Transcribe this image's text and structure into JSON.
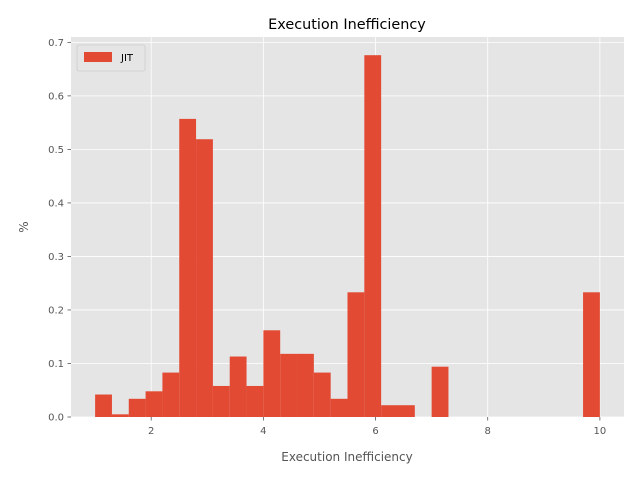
{
  "chart_data": {
    "type": "bar",
    "title": "Execution Inefficiency",
    "xlabel": "Execution Inefficiency",
    "ylabel": "%",
    "xlim": [
      0.57,
      10.43
    ],
    "ylim": [
      0,
      0.71
    ],
    "xticks": [
      2,
      4,
      6,
      8,
      10
    ],
    "yticks": [
      0.0,
      0.1,
      0.2,
      0.3,
      0.4,
      0.5,
      0.6,
      0.7
    ],
    "grid": true,
    "legend_position": "top-left",
    "bin_width": 0.3,
    "series": [
      {
        "name": "JIT",
        "color": "#E24A33",
        "bins": [
          {
            "x0": 1.0,
            "value": 0.042
          },
          {
            "x0": 1.3,
            "value": 0.005
          },
          {
            "x0": 1.6,
            "value": 0.034
          },
          {
            "x0": 1.9,
            "value": 0.048
          },
          {
            "x0": 2.2,
            "value": 0.083
          },
          {
            "x0": 2.5,
            "value": 0.557
          },
          {
            "x0": 2.8,
            "value": 0.519
          },
          {
            "x0": 3.1,
            "value": 0.058
          },
          {
            "x0": 3.4,
            "value": 0.113
          },
          {
            "x0": 3.7,
            "value": 0.058
          },
          {
            "x0": 4.0,
            "value": 0.162
          },
          {
            "x0": 4.3,
            "value": 0.118
          },
          {
            "x0": 4.6,
            "value": 0.118
          },
          {
            "x0": 4.9,
            "value": 0.083
          },
          {
            "x0": 5.2,
            "value": 0.034
          },
          {
            "x0": 5.5,
            "value": 0.233
          },
          {
            "x0": 5.8,
            "value": 0.676
          },
          {
            "x0": 6.1,
            "value": 0.022
          },
          {
            "x0": 6.4,
            "value": 0.022
          },
          {
            "x0": 6.7,
            "value": 0.0
          },
          {
            "x0": 7.0,
            "value": 0.094
          },
          {
            "x0": 7.3,
            "value": 0.0
          },
          {
            "x0": 7.6,
            "value": 0.0
          },
          {
            "x0": 7.9,
            "value": 0.0
          },
          {
            "x0": 8.2,
            "value": 0.0
          },
          {
            "x0": 8.5,
            "value": 0.0
          },
          {
            "x0": 8.8,
            "value": 0.0
          },
          {
            "x0": 9.1,
            "value": 0.0
          },
          {
            "x0": 9.4,
            "value": 0.0
          },
          {
            "x0": 9.7,
            "value": 0.233
          }
        ]
      }
    ],
    "colors": {
      "plot_background": "#E5E5E5",
      "grid": "#FFFFFF",
      "tick_text": "#555555"
    }
  }
}
